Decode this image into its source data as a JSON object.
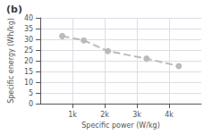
{
  "chart_data": {
    "type": "line",
    "title": "(b)",
    "xlabel": "Specific power (W/kg)",
    "ylabel": "Specific energy (Wh/kg)",
    "x": [
      680,
      1350,
      2100,
      3300,
      4300
    ],
    "values": [
      31.5,
      29.5,
      24.5,
      21.0,
      17.5
    ],
    "color": "#bbbbbb",
    "line_style": "dashed",
    "marker": "circle",
    "xlim": [
      0,
      5000
    ],
    "xticks": [
      {
        "value": 1000,
        "label": "1k"
      },
      {
        "value": 2000,
        "label": "2k"
      },
      {
        "value": 3000,
        "label": "3k"
      },
      {
        "value": 4000,
        "label": "4k"
      }
    ],
    "ylim": [
      0,
      40
    ],
    "yticks": [
      0,
      5,
      10,
      15,
      20,
      25,
      30,
      35,
      40
    ],
    "grid": true
  }
}
